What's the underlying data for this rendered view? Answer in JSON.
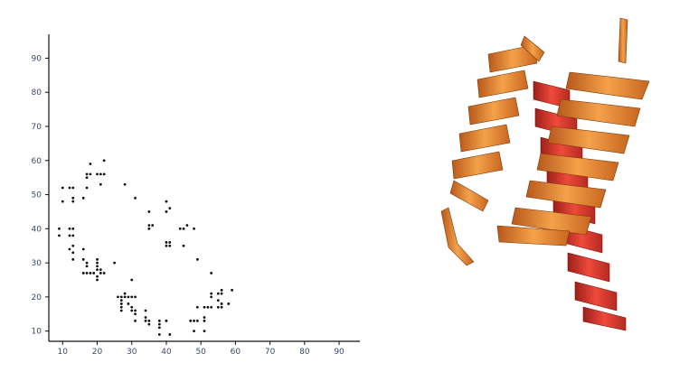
{
  "chart_data": {
    "type": "scatter",
    "title": "",
    "xlabel": "",
    "ylabel": "",
    "xlim": [
      6,
      96
    ],
    "ylim": [
      7,
      97
    ],
    "x_ticks": [
      "10",
      "20",
      "30",
      "40",
      "50",
      "60",
      "70",
      "80",
      "90"
    ],
    "y_ticks": [
      "10",
      "20",
      "30",
      "40",
      "50",
      "60",
      "70",
      "80",
      "90"
    ],
    "grid": false,
    "point_color": "#111111",
    "points": [
      [
        9,
        40
      ],
      [
        9,
        38
      ],
      [
        10,
        52
      ],
      [
        10,
        48
      ],
      [
        12,
        40
      ],
      [
        12,
        38
      ],
      [
        13,
        40
      ],
      [
        13,
        38
      ],
      [
        13,
        35
      ],
      [
        12,
        34
      ],
      [
        13,
        33
      ],
      [
        13,
        31
      ],
      [
        12,
        52
      ],
      [
        13,
        52
      ],
      [
        13,
        49
      ],
      [
        13,
        48
      ],
      [
        16,
        34
      ],
      [
        16,
        31
      ],
      [
        17,
        30
      ],
      [
        17,
        29
      ],
      [
        16,
        27
      ],
      [
        17,
        27
      ],
      [
        18,
        27
      ],
      [
        19,
        27
      ],
      [
        16,
        49
      ],
      [
        17,
        52
      ],
      [
        17,
        55
      ],
      [
        17,
        56
      ],
      [
        18,
        56
      ],
      [
        18,
        59
      ],
      [
        20,
        31
      ],
      [
        20,
        30
      ],
      [
        20,
        29
      ],
      [
        20,
        28
      ],
      [
        21,
        28
      ],
      [
        20,
        26
      ],
      [
        20,
        25
      ],
      [
        21,
        27
      ],
      [
        22,
        27
      ],
      [
        20,
        56
      ],
      [
        21,
        56
      ],
      [
        22,
        56
      ],
      [
        21,
        53
      ],
      [
        22,
        60
      ],
      [
        25,
        30
      ],
      [
        26,
        20
      ],
      [
        27,
        20
      ],
      [
        27,
        19
      ],
      [
        27,
        18
      ],
      [
        28,
        21
      ],
      [
        28,
        20
      ],
      [
        27,
        17
      ],
      [
        27,
        16
      ],
      [
        29,
        20
      ],
      [
        30,
        20
      ],
      [
        31,
        20
      ],
      [
        30,
        25
      ],
      [
        29,
        18
      ],
      [
        30,
        17
      ],
      [
        31,
        16
      ],
      [
        30,
        16
      ],
      [
        31,
        15
      ],
      [
        31,
        13
      ],
      [
        28,
        53
      ],
      [
        34,
        16
      ],
      [
        34,
        14
      ],
      [
        34,
        13
      ],
      [
        35,
        13
      ],
      [
        35,
        12
      ],
      [
        38,
        12
      ],
      [
        38,
        13
      ],
      [
        38,
        11
      ],
      [
        40,
        13
      ],
      [
        41,
        9
      ],
      [
        31,
        49
      ],
      [
        35,
        45
      ],
      [
        35,
        40
      ],
      [
        35,
        41
      ],
      [
        36,
        41
      ],
      [
        38,
        9
      ],
      [
        40,
        48
      ],
      [
        40,
        45
      ],
      [
        41,
        46
      ],
      [
        40,
        36
      ],
      [
        40,
        35
      ],
      [
        41,
        35
      ],
      [
        41,
        36
      ],
      [
        44,
        40
      ],
      [
        45,
        40
      ],
      [
        45,
        35
      ],
      [
        46,
        41
      ],
      [
        48,
        40
      ],
      [
        47,
        13
      ],
      [
        48,
        10
      ],
      [
        48,
        13
      ],
      [
        49,
        13
      ],
      [
        49,
        17
      ],
      [
        49,
        31
      ],
      [
        51,
        10
      ],
      [
        51,
        13
      ],
      [
        51,
        14
      ],
      [
        51,
        17
      ],
      [
        52,
        17
      ],
      [
        53,
        20
      ],
      [
        53,
        21
      ],
      [
        53,
        17
      ],
      [
        53,
        27
      ],
      [
        55,
        17
      ],
      [
        55,
        19
      ],
      [
        55,
        21
      ],
      [
        56,
        17
      ],
      [
        56,
        21
      ],
      [
        56,
        22
      ],
      [
        56,
        18
      ],
      [
        58,
        18
      ],
      [
        59,
        22
      ]
    ]
  },
  "structure_image": {
    "description_icon": "protein-ribbon-icon",
    "helix_colors": [
      "#e8822a",
      "#d9342b"
    ]
  }
}
